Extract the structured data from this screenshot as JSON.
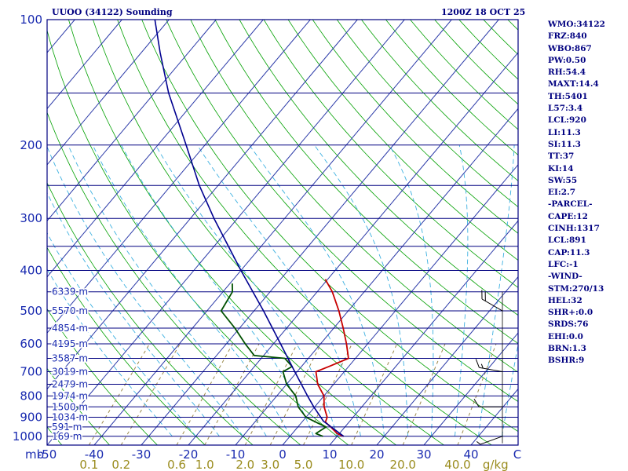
{
  "header": {
    "title_left": "UUOO (34122) Sounding",
    "title_right": "1200Z 18 OCT 25"
  },
  "indices": [
    "WMO:34122",
    "FRZ:840",
    "WBO:867",
    "PW:0.50",
    "RH:54.4",
    "MAXT:14.4",
    "TH:5401",
    "L57:3.4",
    "LCL:920",
    "LI:11.3",
    "SI:11.3",
    "TT:37",
    "KI:14",
    "SW:55",
    "EI:2.7",
    "-PARCEL-",
    "CAPE:12",
    "CINH:1317",
    "LCL:891",
    "CAP:11.3",
    "LFC:-1",
    "-WIND-",
    "STM:270/13",
    "HEL:32",
    "SHR+:0.0",
    "SRDS:76",
    "EHI:0.0",
    "BRN:1.3",
    "BSHR:9"
  ],
  "colors": {
    "frame": "#000080",
    "isobar": "#000080",
    "isotherm": "#2b3aa8",
    "dry_adiabat": "#00a000",
    "moist_adiabat": "#3cb0e0",
    "mixing_ratio": "#9c8a4c",
    "temperature": "#c80000",
    "dewpoint": "#005000",
    "parcel": "#000090",
    "text": "#000080"
  },
  "chart_data": {
    "type": "line",
    "title": "UUOO (34122) Sounding",
    "subtitle": "1200Z 18 OCT 25",
    "xlabel": "C",
    "ylabel": "mb",
    "pressure_axis": {
      "range": [
        1050,
        100
      ],
      "scale": "log",
      "ticks": [
        100,
        200,
        300,
        400,
        500,
        600,
        700,
        800,
        900,
        1000
      ]
    },
    "isobars": [
      1000,
      950,
      900,
      850,
      800,
      750,
      700,
      650,
      600,
      550,
      500,
      450,
      400,
      350,
      300,
      250,
      200,
      150,
      100
    ],
    "temperature_axis": {
      "range": [
        -50,
        50
      ],
      "ticks": [
        -50,
        -40,
        -30,
        -20,
        -10,
        0,
        10,
        20,
        30,
        40
      ],
      "tick_labels": [
        "-50",
        "-40",
        "-30",
        "-20",
        "-10",
        "0",
        "10",
        "20",
        "30",
        "40"
      ],
      "unit_label": "C"
    },
    "mixing_ratio_labels": [
      "0.1",
      "0.2",
      "0.6",
      "1.0",
      "2.0",
      "3.0",
      "5.0",
      "10.0",
      "20.0",
      "40.0"
    ],
    "mixing_ratio_values": [
      0.1,
      0.2,
      0.6,
      1.0,
      2.0,
      3.0,
      5.0,
      10.0,
      20.0,
      40.0
    ],
    "mixing_ratio_unit": "g/kg",
    "pressure_unit_label": "mb",
    "height_labels": [
      {
        "p": 1000,
        "label": "169 m"
      },
      {
        "p": 950,
        "label": "591 m"
      },
      {
        "p": 900,
        "label": "1034 m"
      },
      {
        "p": 850,
        "label": "1500 m"
      },
      {
        "p": 800,
        "label": "1974 m"
      },
      {
        "p": 750,
        "label": "2479 m"
      },
      {
        "p": 700,
        "label": "3019 m"
      },
      {
        "p": 650,
        "label": "3587 m"
      },
      {
        "p": 600,
        "label": "4195 m"
      },
      {
        "p": 550,
        "label": "4854 m"
      },
      {
        "p": 500,
        "label": "5570 m"
      },
      {
        "p": 450,
        "label": "6339 m"
      }
    ],
    "series": [
      {
        "name": "Temperature",
        "points": [
          [
            1000,
            11.4
          ],
          [
            985,
            9.5
          ],
          [
            950,
            7.0
          ],
          [
            925,
            5.0
          ],
          [
            900,
            4.5
          ],
          [
            850,
            2.0
          ],
          [
            800,
            0.0
          ],
          [
            750,
            -3.4
          ],
          [
            700,
            -6.0
          ],
          [
            680,
            -4.2
          ],
          [
            650,
            -1.5
          ],
          [
            600,
            -4.5
          ],
          [
            550,
            -8.0
          ],
          [
            500,
            -12.0
          ],
          [
            450,
            -16.8
          ],
          [
            420,
            -20.5
          ]
        ]
      },
      {
        "name": "Dewpoint",
        "points": [
          [
            1000,
            7.0
          ],
          [
            985,
            5.0
          ],
          [
            950,
            6.0
          ],
          [
            925,
            3.0
          ],
          [
            900,
            0.0
          ],
          [
            850,
            -3.5
          ],
          [
            800,
            -6.0
          ],
          [
            750,
            -10.0
          ],
          [
            700,
            -13.0
          ],
          [
            680,
            -12.0
          ],
          [
            650,
            -15.0
          ],
          [
            640,
            -22.0
          ],
          [
            600,
            -26.0
          ],
          [
            550,
            -31.0
          ],
          [
            500,
            -37.0
          ],
          [
            450,
            -38.0
          ],
          [
            430,
            -39.5
          ]
        ]
      },
      {
        "name": "Parcel",
        "points": [
          [
            1000,
            11.4
          ],
          [
            920,
            4.4
          ],
          [
            850,
            -0.2
          ],
          [
            800,
            -3.5
          ],
          [
            700,
            -10.5
          ],
          [
            600,
            -18.5
          ],
          [
            500,
            -28.0
          ],
          [
            400,
            -40.0
          ],
          [
            300,
            -55.0
          ],
          [
            250,
            -64.0
          ],
          [
            200,
            -74.0
          ],
          [
            150,
            -87.0
          ],
          [
            120,
            -96.0
          ],
          [
            100,
            -103.0
          ]
        ]
      }
    ],
    "wind_barbs": [
      {
        "p": 1000,
        "dir": 250,
        "spd": 5
      },
      {
        "p": 850,
        "dir": 270,
        "spd": 10
      },
      {
        "p": 700,
        "dir": 280,
        "spd": 15
      },
      {
        "p": 500,
        "dir": 300,
        "spd": 20
      }
    ]
  }
}
